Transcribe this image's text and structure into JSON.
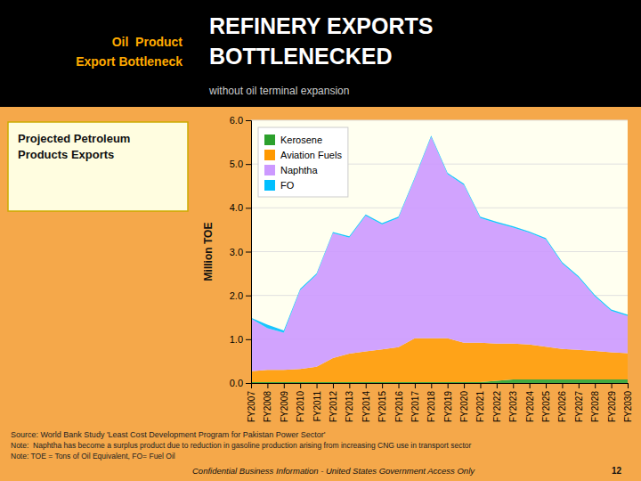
{
  "chart_data": {
    "type": "area",
    "stacked": true,
    "title": [
      "REFINERY EXPORTS",
      "BOTTLENECKED"
    ],
    "subtitle": "without oil terminal expansion",
    "y_label": "Million TOE",
    "categories": [
      "FY2007",
      "FY2008",
      "FY2009",
      "FY2010",
      "FY2011",
      "FY2012",
      "FY2013",
      "FY2014",
      "FY2015",
      "FY2016",
      "FY2017",
      "FY2018",
      "FY2019",
      "FY2020",
      "FY2021",
      "FY2022",
      "FY2023",
      "FY2024",
      "FY2025",
      "FY2026",
      "FY2027",
      "FY2028",
      "FY2029",
      "FY2030"
    ],
    "series": [
      {
        "name": "Kerosene",
        "color": "#2ca02c",
        "values": [
          0.02,
          0.02,
          0.02,
          0.02,
          0.02,
          0.02,
          0.02,
          0.02,
          0.02,
          0.02,
          0.02,
          0.02,
          0.02,
          0.02,
          0.02,
          0.05,
          0.08,
          0.08,
          0.08,
          0.08,
          0.08,
          0.08,
          0.08,
          0.08
        ]
      },
      {
        "name": "Aviation Fuels",
        "color": "#ff9900",
        "values": [
          0.25,
          0.28,
          0.28,
          0.3,
          0.35,
          0.55,
          0.65,
          0.7,
          0.75,
          0.8,
          1.0,
          1.0,
          1.0,
          0.9,
          0.9,
          0.85,
          0.82,
          0.8,
          0.75,
          0.7,
          0.68,
          0.65,
          0.62,
          0.6
        ]
      },
      {
        "name": "Naphtha",
        "color": "#cc99ff",
        "values": [
          1.2,
          0.95,
          0.85,
          1.8,
          2.1,
          2.85,
          2.65,
          3.1,
          2.85,
          2.95,
          3.65,
          4.6,
          3.75,
          3.6,
          2.85,
          2.75,
          2.65,
          2.55,
          2.45,
          1.95,
          1.65,
          1.25,
          0.95,
          0.85
        ]
      },
      {
        "name": "FO",
        "color": "#00bfff",
        "values": [
          0.02,
          0.08,
          0.05,
          0.03,
          0.03,
          0.03,
          0.03,
          0.03,
          0.03,
          0.03,
          0.03,
          0.03,
          0.03,
          0.03,
          0.03,
          0.03,
          0.03,
          0.03,
          0.03,
          0.03,
          0.03,
          0.03,
          0.03,
          0.03
        ]
      }
    ],
    "ylim": [
      0.0,
      6.0
    ],
    "yticks": [
      {
        "value": 0,
        "label": "0.0"
      },
      {
        "value": 1,
        "label": "1.0"
      },
      {
        "value": 2,
        "label": "2.0"
      },
      {
        "value": 3,
        "label": "3.0"
      },
      {
        "value": 4,
        "label": "4.0"
      },
      {
        "value": 5,
        "label": "5.0"
      },
      {
        "value": 6,
        "label": "6.0"
      }
    ],
    "grid": true,
    "legend": "top-left",
    "annotations": [
      "Oil  Product",
      "Export Bottleneck",
      "Projected Petroleum",
      "Products Exports",
      "Source: World Bank Study 'Least Cost Development Program for Pakistan Power Sector'",
      "Note:  Naphtha has become a surplus product due to reduction in gasoline production arising from increasing CNG use in transport sector",
      "Note: TOE = Tons of Oil Equivalent, FO= Fuel Oil",
      "Confidential Business Information - United States Government Access Only",
      "12"
    ]
  }
}
